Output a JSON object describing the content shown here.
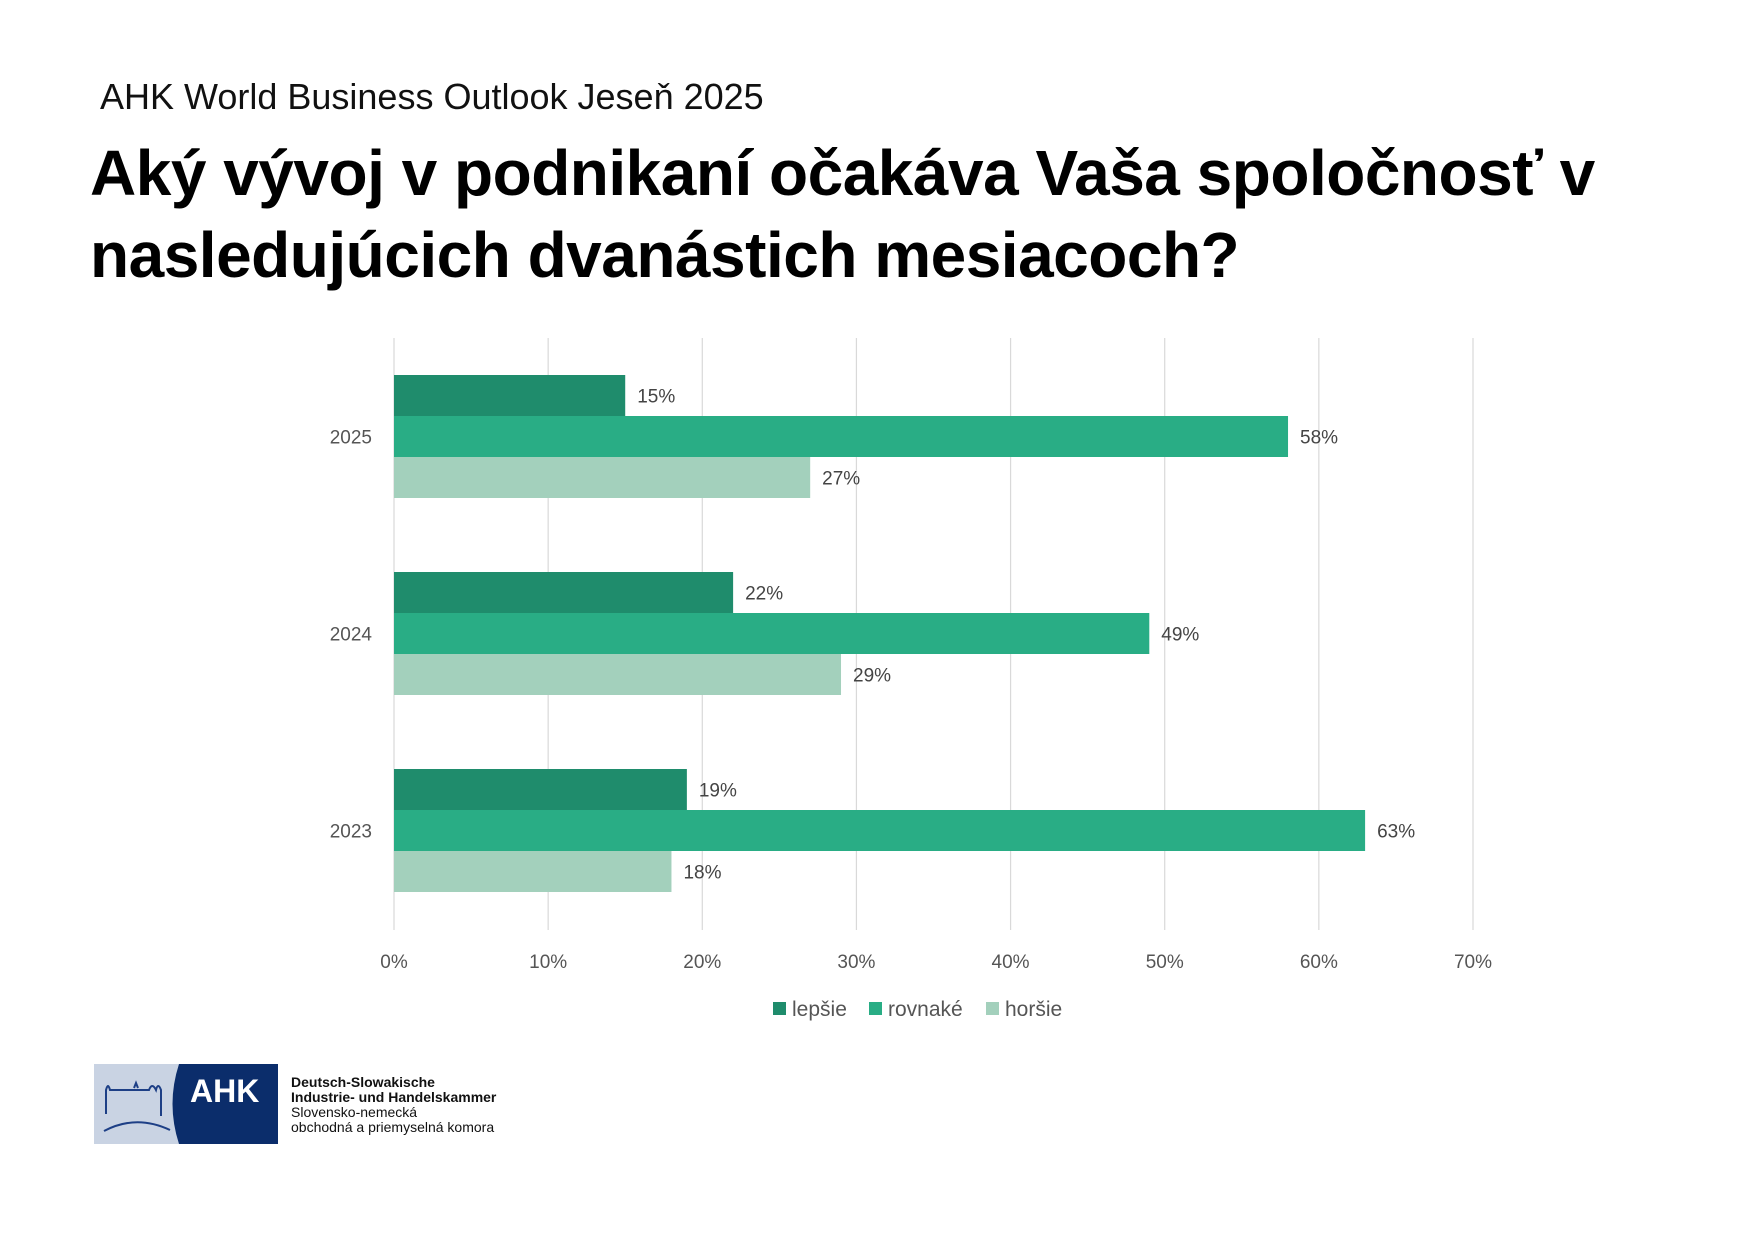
{
  "header": {
    "subtitle": "AHK World Business Outlook Jeseň 2025",
    "title": "Aký vývoj v podnikaní očakáva Vaša spoločnosť v nasledujúcich dvanástich mesiacoch?"
  },
  "chart_data": {
    "type": "bar",
    "orientation": "horizontal",
    "categories": [
      "2025",
      "2024",
      "2023"
    ],
    "series": [
      {
        "name": "lepšie",
        "color": "#1f8c6c",
        "values": [
          15,
          22,
          19
        ]
      },
      {
        "name": "rovnaké",
        "color": "#29ad85",
        "values": [
          58,
          49,
          63
        ]
      },
      {
        "name": "horšie",
        "color": "#a3d0bc",
        "values": [
          27,
          29,
          18
        ]
      }
    ],
    "data_labels": [
      [
        "15%",
        "22%",
        "19%"
      ],
      [
        "58%",
        "49%",
        "63%"
      ],
      [
        "27%",
        "29%",
        "18%"
      ]
    ],
    "xlim": [
      0,
      70
    ],
    "xticks": [
      "0%",
      "10%",
      "20%",
      "30%",
      "40%",
      "50%",
      "60%",
      "70%"
    ],
    "grid": true,
    "legend_position": "bottom"
  },
  "logo": {
    "mark": "AHK",
    "line1": "Deutsch-Slowakische",
    "line2": "Industrie- und Handelskammer",
    "line3": "Slovensko-nemecká",
    "line4": "obchodná a priemyselná komora"
  }
}
